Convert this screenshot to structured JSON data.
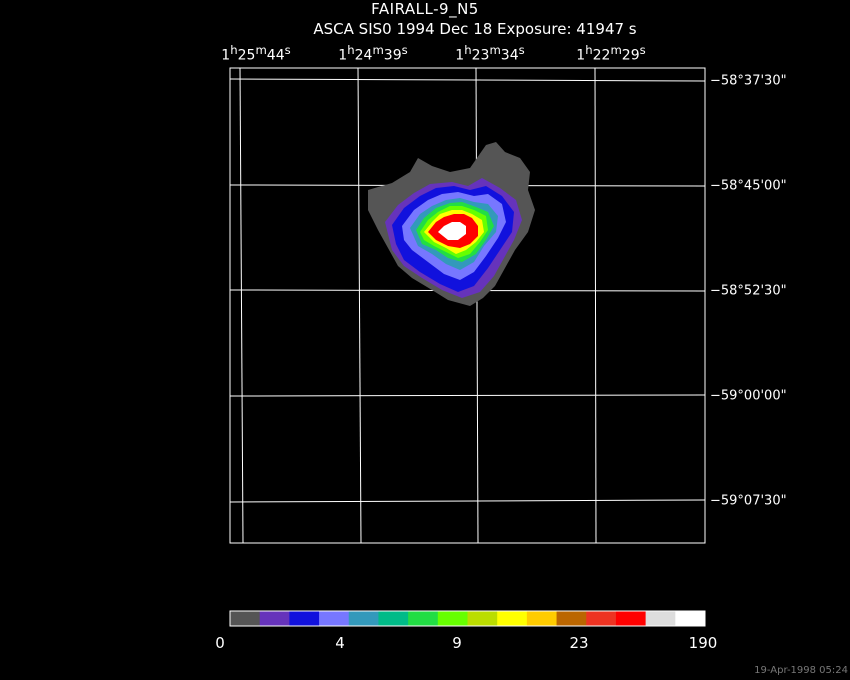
{
  "title": "FAIRALL-9_N5",
  "subtitle": "ASCA SIS0   1994 Dec 18    Exposure: 41947 s",
  "ra_labels": [
    {
      "h": "1",
      "m": "25",
      "s": "44"
    },
    {
      "h": "1",
      "m": "24",
      "s": "39"
    },
    {
      "h": "1",
      "m": "23",
      "s": "34"
    },
    {
      "h": "1",
      "m": "22",
      "s": "29"
    }
  ],
  "dec_labels": [
    "−58°37'30\"",
    "−58°45'00\"",
    "−58°52'30\"",
    "−59°00'00\"",
    "−59°07'30\""
  ],
  "colorbar": {
    "colors": [
      "#555555",
      "#6633bb",
      "#1111dd",
      "#7777ff",
      "#3399bb",
      "#00bb88",
      "#22dd44",
      "#66ff00",
      "#bbdd00",
      "#ffff00",
      "#ffcc00",
      "#bb6600",
      "#ee3322",
      "#ff0000",
      "#dddddd",
      "#ffffff"
    ],
    "labels": [
      "0",
      "4",
      "9",
      "23",
      "190"
    ]
  },
  "timestamp": "19-Apr-1998 05:24"
}
